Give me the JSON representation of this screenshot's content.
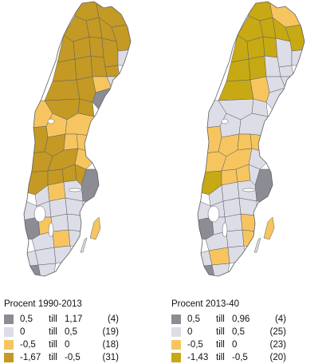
{
  "colors": {
    "grey": "#8c8c94",
    "light": "#dcdde7",
    "pale_orange": "#f7c55f",
    "dark_gold": "#c49a24",
    "olive_gold": "#c7a913",
    "border": "#5e5e60"
  },
  "maps": [
    {
      "title": "Procent 1990-2013",
      "legend": [
        {
          "from": "0,5",
          "till": "till",
          "to": "1,17",
          "count": "(4)",
          "color_key": "grey"
        },
        {
          "from": "0",
          "till": "till",
          "to": "0,5",
          "count": "(19)",
          "color_key": "light"
        },
        {
          "from": "-0,5",
          "till": "till",
          "to": "0",
          "count": "(18)",
          "color_key": "pale_orange"
        },
        {
          "from": "-1,67",
          "till": "till",
          "to": "-0,5",
          "count": "(31)",
          "color_key": "dark_gold"
        }
      ]
    },
    {
      "title": "Procent 2013-40",
      "legend": [
        {
          "from": "0,5",
          "till": "till",
          "to": "0,96",
          "count": "(4)",
          "color_key": "grey"
        },
        {
          "from": "0",
          "till": "till",
          "to": "0,5",
          "count": "(25)",
          "color_key": "light"
        },
        {
          "from": "-0,5",
          "till": "till",
          "to": "0",
          "count": "(23)",
          "color_key": "pale_orange"
        },
        {
          "from": "-1,43",
          "till": "till",
          "to": "-0,5",
          "count": "(20)",
          "color_key": "olive_gold"
        }
      ]
    }
  ]
}
